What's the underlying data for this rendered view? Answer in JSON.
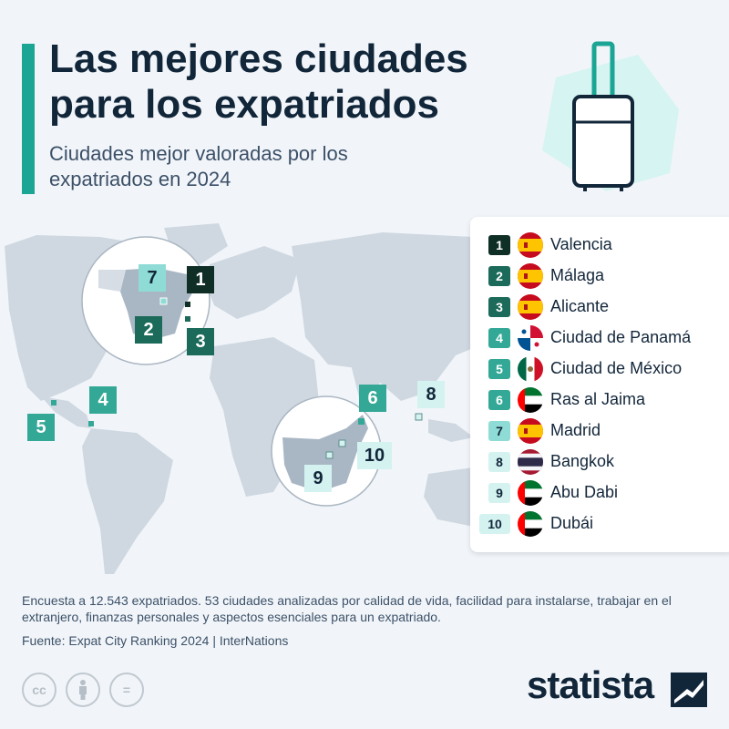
{
  "header": {
    "title": "Las mejores ciudades para los expatriados",
    "subtitle": "Ciudades mejor valoradas por los expatriados en 2024"
  },
  "illustration": {
    "icon": "suitcase-icon"
  },
  "map": {
    "markers": [
      {
        "rank": "1",
        "location": "Valencia"
      },
      {
        "rank": "2",
        "location": "Málaga"
      },
      {
        "rank": "3",
        "location": "Alicante"
      },
      {
        "rank": "4",
        "location": "Ciudad de Panamá"
      },
      {
        "rank": "5",
        "location": "Ciudad de México"
      },
      {
        "rank": "6",
        "location": "Ras al Jaima"
      },
      {
        "rank": "7",
        "location": "Madrid"
      },
      {
        "rank": "8",
        "location": "Bangkok"
      },
      {
        "rank": "9",
        "location": "Abu Dabi"
      },
      {
        "rank": "10",
        "location": "Dubái"
      }
    ]
  },
  "legend": {
    "items": [
      {
        "rank": "1",
        "city": "Valencia",
        "flag": "spain-flag-icon"
      },
      {
        "rank": "2",
        "city": "Málaga",
        "flag": "spain-flag-icon"
      },
      {
        "rank": "3",
        "city": "Alicante",
        "flag": "spain-flag-icon"
      },
      {
        "rank": "4",
        "city": "Ciudad de Panamá",
        "flag": "panama-flag-icon"
      },
      {
        "rank": "5",
        "city": "Ciudad de México",
        "flag": "mexico-flag-icon"
      },
      {
        "rank": "6",
        "city": "Ras al Jaima",
        "flag": "uae-flag-icon"
      },
      {
        "rank": "7",
        "city": "Madrid",
        "flag": "spain-flag-icon"
      },
      {
        "rank": "8",
        "city": "Bangkok",
        "flag": "thailand-flag-icon"
      },
      {
        "rank": "9",
        "city": "Abu Dabi",
        "flag": "uae-flag-icon"
      },
      {
        "rank": "10",
        "city": "Dubái",
        "flag": "uae-flag-icon"
      }
    ]
  },
  "footer": {
    "note": "Encuesta a 12.543 expatriados. 53 ciudades analizadas por calidad de vida, facilidad para instalarse, trabajar en el extranjero, finanzas personales y aspectos esenciales para un expatriado.",
    "source": "Fuente: Expat City Ranking 2024 | InterNations",
    "license_icons": [
      "cc-icon",
      "attribution-icon",
      "no-derivatives-icon"
    ],
    "cc_label": "cc",
    "nd_label": "=",
    "brand": "statista"
  },
  "colors": {
    "accent": "#1aa595",
    "dark_marker": "#0f2e26",
    "mid_marker": "#1b6a5a",
    "teal_marker": "#34a896",
    "light_marker": "#8fdcd6",
    "pale_marker": "#d4f2f0",
    "background": "#f1f5f9"
  }
}
